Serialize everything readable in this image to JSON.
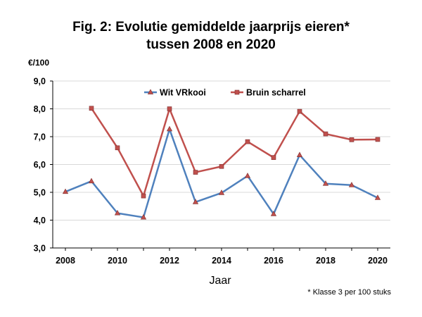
{
  "title_line1": "Fig. 2: Evolutie gemiddelde jaarprijs eieren*",
  "title_line2": "tussen 2008 en 2020",
  "unit_label": "€/100",
  "footnote": "* Klasse 3 per 100 stuks",
  "chart_data": {
    "type": "line",
    "title": "Fig. 2: Evolutie gemiddelde jaarprijs eieren* tussen 2008 en 2020",
    "xlabel": "Jaar",
    "ylabel": "€/100",
    "x": [
      2008,
      2009,
      2010,
      2011,
      2012,
      2013,
      2014,
      2015,
      2016,
      2017,
      2018,
      2019,
      2020
    ],
    "x_tick_labels": [
      "2008",
      "2010",
      "2012",
      "2014",
      "2016",
      "2018",
      "2020"
    ],
    "x_tick_values": [
      2008,
      2010,
      2012,
      2014,
      2016,
      2018,
      2020
    ],
    "y_tick_labels": [
      "3,0",
      "4,0",
      "5,0",
      "6,0",
      "7,0",
      "8,0",
      "9,0"
    ],
    "y_tick_values": [
      3,
      4,
      5,
      6,
      7,
      8,
      9
    ],
    "ylim": [
      3,
      9
    ],
    "xlim": [
      2008,
      2020
    ],
    "grid": "horizontal",
    "legend_position": "top",
    "series": [
      {
        "name": "Wit VRkooi",
        "color": "#4f81bd",
        "marker_color": "#c0504d",
        "values": [
          5.02,
          5.4,
          4.25,
          4.1,
          7.27,
          4.65,
          4.98,
          5.59,
          4.22,
          6.34,
          5.31,
          5.26,
          4.8
        ]
      },
      {
        "name": "Bruin scharrel",
        "color": "#c0504d",
        "marker_color": "#c0504d",
        "values": [
          null,
          8.02,
          6.6,
          4.87,
          8.0,
          5.72,
          5.93,
          6.82,
          6.25,
          7.91,
          7.1,
          6.89,
          6.9
        ]
      }
    ]
  }
}
